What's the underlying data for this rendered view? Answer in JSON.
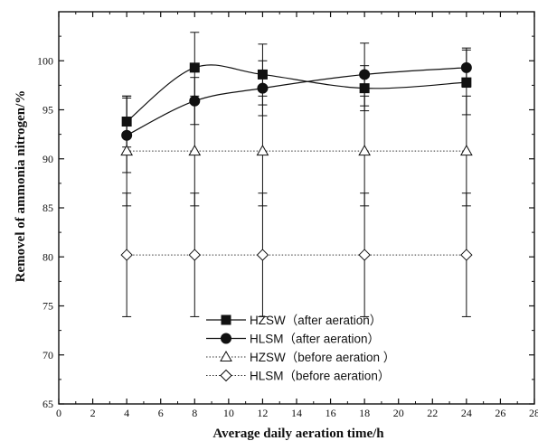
{
  "chart_data": {
    "type": "line",
    "xlabel": "Average daily aeration time/h",
    "ylabel": "Removel of ammonia nitrogen/%",
    "xlim": [
      0,
      28
    ],
    "ylim": [
      65,
      105
    ],
    "xticks": [
      0,
      2,
      4,
      6,
      8,
      10,
      12,
      14,
      16,
      18,
      20,
      22,
      24,
      26,
      28
    ],
    "yticks": [
      65,
      70,
      75,
      80,
      85,
      90,
      95,
      100
    ],
    "grid": false,
    "legend_position": "bottom-center",
    "x": [
      4,
      8,
      12,
      18,
      24
    ],
    "series": [
      {
        "name": "HZSW（after aeration）",
        "marker": "square-filled",
        "line": "smooth-solid",
        "values": [
          93.8,
          99.3,
          98.6,
          97.2,
          97.8
        ],
        "errors": [
          2.6,
          3.6,
          3.1,
          2.3,
          3.3
        ]
      },
      {
        "name": "HLSM（after aeration）",
        "marker": "circle-filled",
        "line": "smooth-solid",
        "values": [
          92.4,
          95.9,
          97.2,
          98.6,
          99.3
        ],
        "errors": [
          3.8,
          2.4,
          2.8,
          3.2,
          2.0
        ]
      },
      {
        "name": "HZSW（before aeration ）",
        "marker": "triangle-open",
        "line": "dotted",
        "values": [
          90.8,
          90.8,
          90.8,
          90.8,
          90.8
        ],
        "errors": [
          5.6,
          5.6,
          5.6,
          5.6,
          5.6
        ]
      },
      {
        "name": "HLSM（before aeration）",
        "marker": "diamond-open",
        "line": "dotted",
        "values": [
          80.2,
          80.2,
          80.2,
          80.2,
          80.2
        ],
        "errors": [
          6.3,
          6.3,
          6.3,
          6.3,
          6.3
        ]
      }
    ]
  }
}
